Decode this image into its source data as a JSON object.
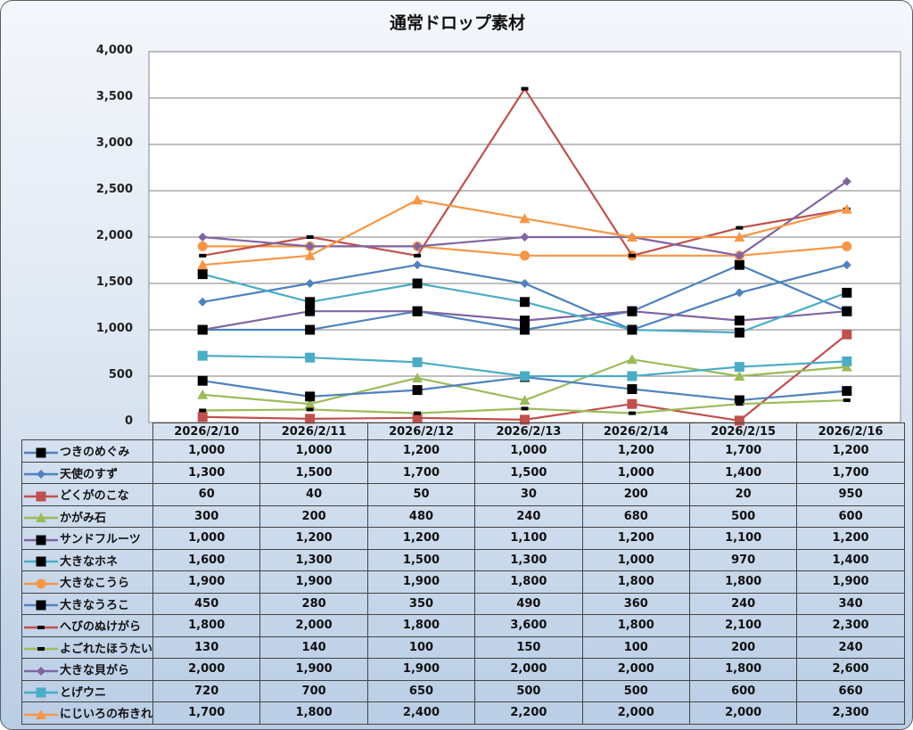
{
  "chart_data": {
    "type": "line",
    "title": "通常ドロップ素材",
    "xlabel": "",
    "ylabel": "",
    "ylim": [
      0,
      4000
    ],
    "yticks": [
      0,
      500,
      1000,
      1500,
      2000,
      2500,
      3000,
      3500,
      4000
    ],
    "ytick_labels": [
      "0",
      "500",
      "1,000",
      "1,500",
      "2,000",
      "2,500",
      "3,000",
      "3,500",
      "4,000"
    ],
    "grid": true,
    "legend": "data-table-below",
    "categories": [
      "2026/2/10",
      "2026/2/11",
      "2026/2/12",
      "2026/2/13",
      "2026/2/14",
      "2026/2/15",
      "2026/2/16"
    ],
    "series": [
      {
        "name": "つきのめぐみ",
        "color": "#4f81bd",
        "marker": "square-black",
        "values": [
          1000,
          1000,
          1200,
          1000,
          1200,
          1700,
          1200
        ],
        "labels": [
          "1,000",
          "1,000",
          "1,200",
          "1,000",
          "1,200",
          "1,700",
          "1,200"
        ]
      },
      {
        "name": "天使のすず",
        "color": "#4f81bd",
        "marker": "diamond",
        "values": [
          1300,
          1500,
          1700,
          1500,
          1000,
          1400,
          1700
        ],
        "labels": [
          "1,300",
          "1,500",
          "1,700",
          "1,500",
          "1,000",
          "1,400",
          "1,700"
        ]
      },
      {
        "name": "どくがのこな",
        "color": "#c0504d",
        "marker": "square",
        "values": [
          60,
          40,
          50,
          30,
          200,
          20,
          950
        ],
        "labels": [
          "60",
          "40",
          "50",
          "30",
          "200",
          "20",
          "950"
        ]
      },
      {
        "name": "かがみ石",
        "color": "#9bbb59",
        "marker": "triangle",
        "values": [
          300,
          200,
          480,
          240,
          680,
          500,
          600
        ],
        "labels": [
          "300",
          "200",
          "480",
          "240",
          "680",
          "500",
          "600"
        ]
      },
      {
        "name": "サンドフルーツ",
        "color": "#8064a2",
        "marker": "square-black",
        "values": [
          1000,
          1200,
          1200,
          1100,
          1200,
          1100,
          1200
        ],
        "labels": [
          "1,000",
          "1,200",
          "1,200",
          "1,100",
          "1,200",
          "1,100",
          "1,200"
        ]
      },
      {
        "name": "大きなホネ",
        "color": "#4bacc6",
        "marker": "square-black",
        "values": [
          1600,
          1300,
          1500,
          1300,
          1000,
          970,
          1400
        ],
        "labels": [
          "1,600",
          "1,300",
          "1,500",
          "1,300",
          "1,000",
          "970",
          "1,400"
        ]
      },
      {
        "name": "大きなこうら",
        "color": "#f79646",
        "marker": "circle",
        "values": [
          1900,
          1900,
          1900,
          1800,
          1800,
          1800,
          1900
        ],
        "labels": [
          "1,900",
          "1,900",
          "1,900",
          "1,800",
          "1,800",
          "1,800",
          "1,900"
        ]
      },
      {
        "name": "大きなうろこ",
        "color": "#4f81bd",
        "marker": "square-black",
        "values": [
          450,
          280,
          350,
          490,
          360,
          240,
          340
        ],
        "labels": [
          "450",
          "280",
          "350",
          "490",
          "360",
          "240",
          "340"
        ]
      },
      {
        "name": "へびのぬけがら",
        "color": "#c0504d",
        "marker": "dash-black",
        "values": [
          1800,
          2000,
          1800,
          3600,
          1800,
          2100,
          2300
        ],
        "labels": [
          "1,800",
          "2,000",
          "1,800",
          "3,600",
          "1,800",
          "2,100",
          "2,300"
        ]
      },
      {
        "name": "よごれたほうたい",
        "color": "#9bbb59",
        "marker": "dash-black",
        "values": [
          130,
          140,
          100,
          150,
          100,
          200,
          240
        ],
        "labels": [
          "130",
          "140",
          "100",
          "150",
          "100",
          "200",
          "240"
        ]
      },
      {
        "name": "大きな貝がら",
        "color": "#8064a2",
        "marker": "diamond",
        "values": [
          2000,
          1900,
          1900,
          2000,
          2000,
          1800,
          2600
        ],
        "labels": [
          "2,000",
          "1,900",
          "1,900",
          "2,000",
          "2,000",
          "1,800",
          "2,600"
        ]
      },
      {
        "name": "とげウニ",
        "color": "#4bacc6",
        "marker": "square",
        "values": [
          720,
          700,
          650,
          500,
          500,
          600,
          660
        ],
        "labels": [
          "720",
          "700",
          "650",
          "500",
          "500",
          "600",
          "660"
        ]
      },
      {
        "name": "にじいろの布きれ",
        "color": "#f79646",
        "marker": "triangle",
        "values": [
          1700,
          1800,
          2400,
          2200,
          2000,
          2000,
          2300
        ],
        "labels": [
          "1,700",
          "1,800",
          "2,400",
          "2,200",
          "2,000",
          "2,000",
          "2,300"
        ]
      }
    ]
  }
}
